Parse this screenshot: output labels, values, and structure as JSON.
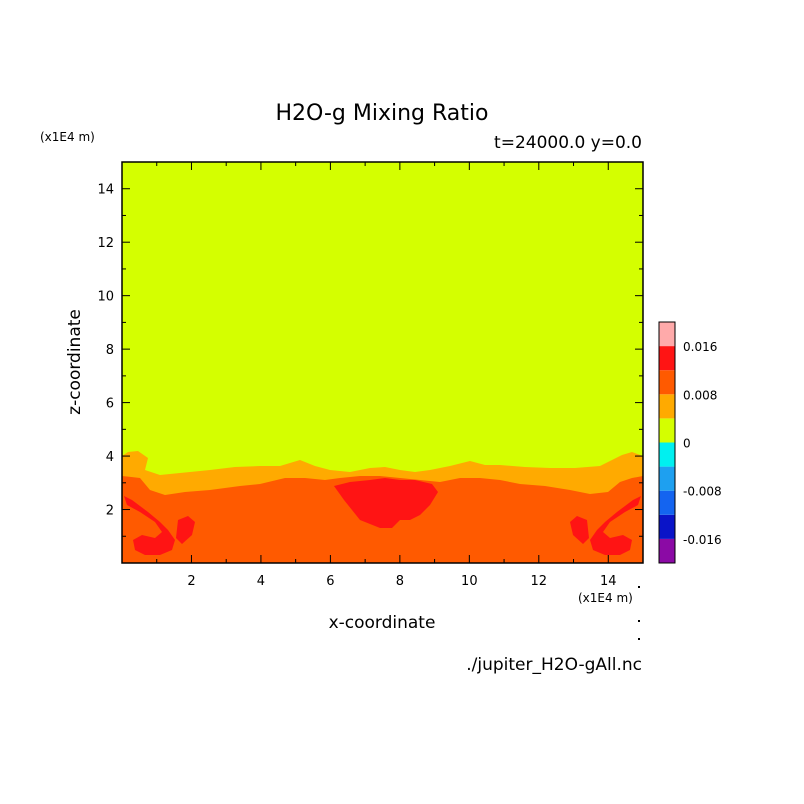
{
  "chart_data": {
    "type": "heatmap",
    "title": "H2O-g Mixing Ratio",
    "subtitle": "t=24000.0 y=0.0",
    "xlabel": "x-coordinate",
    "ylabel": "z-coordinate",
    "x_unit": "(x1E4 m)",
    "y_unit": "(x1E4 m)",
    "xlim": [
      0,
      15
    ],
    "ylim": [
      0,
      15
    ],
    "x_ticks": [
      "2",
      "4",
      "6",
      "8",
      "10",
      "12",
      "14"
    ],
    "y_ticks": [
      "2",
      "4",
      "6",
      "8",
      "10",
      "12",
      "14"
    ],
    "source_file": "./jupiter_H2O-gAll.nc",
    "colorbar": {
      "levels": [
        {
          "color": "#8b0aa5"
        },
        {
          "color": "#0a14c8"
        },
        {
          "color": "#1464f0"
        },
        {
          "color": "#1ea0f0"
        },
        {
          "color": "#00f0f0"
        },
        {
          "color": "#d4ff00"
        },
        {
          "color": "#ffaa00"
        },
        {
          "color": "#ff5a00"
        },
        {
          "color": "#ff1414"
        },
        {
          "color": "#ffaaaa"
        }
      ],
      "labels": [
        "0.016",
        "0.008",
        "0",
        "-0.008",
        "-0.016"
      ]
    },
    "regions": {
      "background_value": "0 to 0.004 (yellow-green) above ~z=4",
      "colors": {
        "upper": "#d4ff00",
        "band": "#ffaa00",
        "lower": "#ff5a00",
        "core": "#ff1414"
      }
    }
  }
}
